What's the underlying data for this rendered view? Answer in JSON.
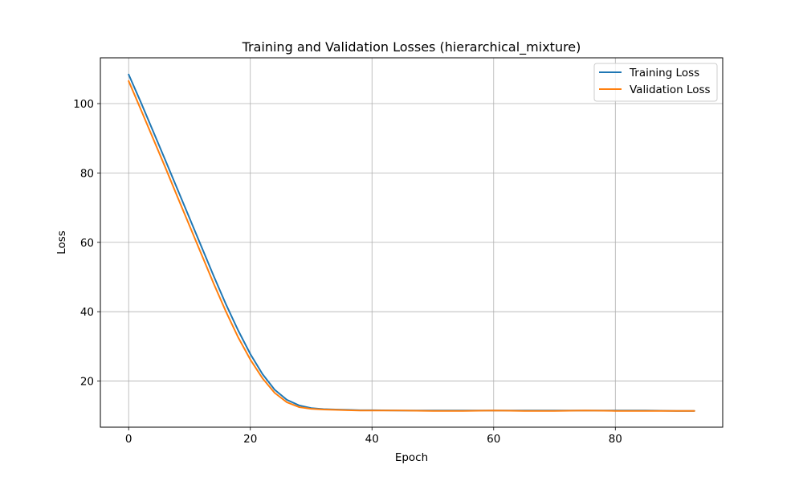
{
  "chart_data": {
    "type": "line",
    "title": "Training and Validation Losses (hierarchical_mixture)",
    "xlabel": "Epoch",
    "ylabel": "Loss",
    "xlim": [
      -4.65,
      97.65
    ],
    "ylim": [
      6.7,
      113.2
    ],
    "xticks": [
      0,
      20,
      40,
      60,
      80
    ],
    "yticks": [
      20,
      40,
      60,
      80,
      100
    ],
    "grid": true,
    "legend_position": "top-right",
    "series": [
      {
        "name": "Training Loss",
        "color": "#1f77b4",
        "x": [
          0,
          2,
          4,
          6,
          8,
          10,
          12,
          14,
          16,
          18,
          20,
          22,
          24,
          26,
          28,
          30,
          32,
          34,
          36,
          38,
          40,
          45,
          50,
          55,
          60,
          65,
          70,
          75,
          80,
          85,
          90,
          93
        ],
        "y": [
          108.4,
          100.4,
          92.1,
          83.8,
          75.4,
          67.0,
          58.6,
          50.2,
          42.1,
          34.6,
          27.8,
          22.0,
          17.5,
          14.6,
          13.0,
          12.2,
          11.9,
          11.8,
          11.7,
          11.6,
          11.6,
          11.5,
          11.5,
          11.5,
          11.5,
          11.5,
          11.5,
          11.5,
          11.5,
          11.5,
          11.4,
          11.4
        ]
      },
      {
        "name": "Validation Loss",
        "color": "#ff7f0e",
        "x": [
          0,
          2,
          4,
          6,
          8,
          10,
          12,
          14,
          16,
          18,
          20,
          22,
          24,
          26,
          28,
          30,
          32,
          34,
          36,
          38,
          40,
          45,
          50,
          55,
          60,
          65,
          70,
          75,
          80,
          85,
          90,
          93
        ],
        "y": [
          106.5,
          98.3,
          90.0,
          81.7,
          73.2,
          64.8,
          56.4,
          48.0,
          40.0,
          32.6,
          26.2,
          20.8,
          16.6,
          13.9,
          12.5,
          12.0,
          11.8,
          11.7,
          11.6,
          11.5,
          11.5,
          11.5,
          11.4,
          11.4,
          11.5,
          11.4,
          11.4,
          11.5,
          11.4,
          11.4,
          11.4,
          11.4
        ]
      }
    ]
  }
}
